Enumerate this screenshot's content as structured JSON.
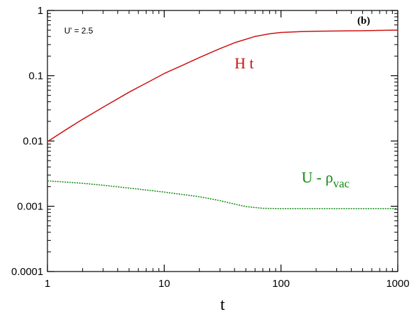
{
  "chart_data": {
    "type": "line",
    "xscale": "log",
    "yscale": "log",
    "xlim": [
      1,
      1000
    ],
    "ylim": [
      0.0001,
      1
    ],
    "xlabel": "t",
    "ylabel": "",
    "grid": false,
    "x_ticks": [
      {
        "value": 1,
        "label": "1"
      },
      {
        "value": 10,
        "label": "10"
      },
      {
        "value": 100,
        "label": "100"
      },
      {
        "value": 1000,
        "label": "1000"
      }
    ],
    "y_ticks": [
      {
        "value": 1,
        "label": "1"
      },
      {
        "value": 0.1,
        "label": "0.1"
      },
      {
        "value": 0.01,
        "label": "0.01"
      },
      {
        "value": 0.001,
        "label": "0.001"
      },
      {
        "value": 0.0001,
        "label": "0.0001"
      }
    ],
    "panel_tag": "(b)",
    "parameter_label": "U' = 2.5",
    "series": [
      {
        "label_main": "H t",
        "label_sub": "",
        "color": "#cc1111",
        "dash": "",
        "label_at": {
          "x": 40,
          "y": 0.13
        },
        "points": [
          [
            1,
            0.0098
          ],
          [
            1.5,
            0.0156
          ],
          [
            2,
            0.0215
          ],
          [
            3,
            0.033
          ],
          [
            5,
            0.056
          ],
          [
            7,
            0.077
          ],
          [
            10,
            0.108
          ],
          [
            15,
            0.15
          ],
          [
            20,
            0.19
          ],
          [
            30,
            0.26
          ],
          [
            40,
            0.32
          ],
          [
            60,
            0.4
          ],
          [
            80,
            0.44
          ],
          [
            100,
            0.46
          ],
          [
            150,
            0.475
          ],
          [
            200,
            0.48
          ],
          [
            300,
            0.485
          ],
          [
            500,
            0.49
          ],
          [
            700,
            0.495
          ],
          [
            1000,
            0.5
          ]
        ]
      },
      {
        "label_main": "U - ρ",
        "label_sub": "vac",
        "color": "#118811",
        "dash": "2,1.5",
        "label_at": {
          "x": 150,
          "y": 0.0023
        },
        "points": [
          [
            1,
            0.00245
          ],
          [
            2,
            0.00225
          ],
          [
            3,
            0.0021
          ],
          [
            5,
            0.0019
          ],
          [
            10,
            0.00165
          ],
          [
            20,
            0.0014
          ],
          [
            30,
            0.00122
          ],
          [
            40,
            0.00108
          ],
          [
            50,
            0.00099
          ],
          [
            70,
            0.00093
          ],
          [
            100,
            0.00092
          ],
          [
            200,
            0.00092
          ],
          [
            500,
            0.00092
          ],
          [
            1000,
            0.00092
          ]
        ]
      }
    ]
  }
}
